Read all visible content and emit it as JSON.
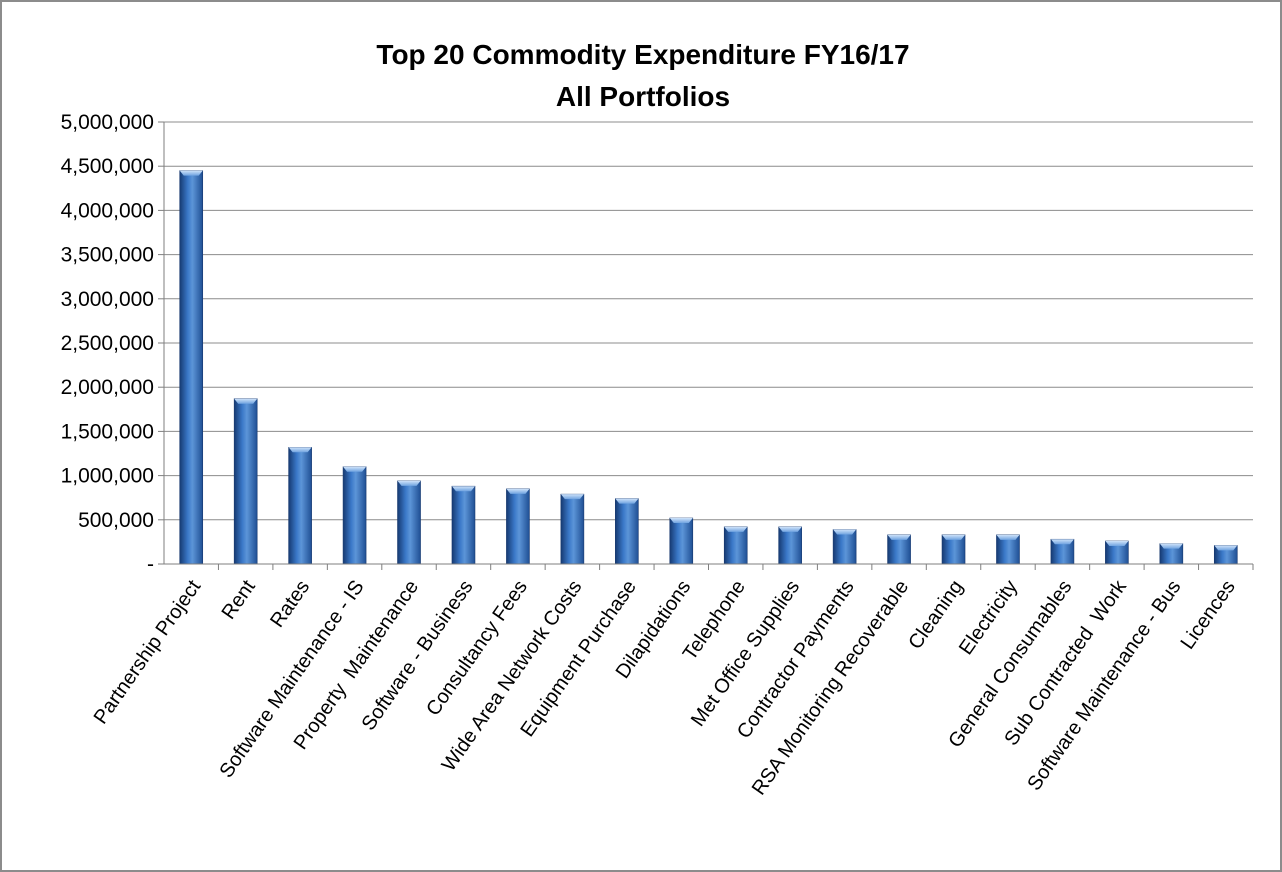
{
  "chart_data": {
    "type": "bar",
    "title": "Top 20 Commodity Expenditure FY16/17",
    "subtitle": "All Portfolios",
    "categories": [
      "Partnership Project",
      "Rent",
      "Rates",
      "Software Maintenance - IS",
      "Property  Maintenance",
      "Software - Business",
      "Consultancy Fees",
      "Wide Area Network Costs",
      "Equipment Purchase",
      "Dilapidations",
      "Telephone",
      "Met Office Supplies",
      "Contractor Payments",
      "RSA Monitoring Recoverable",
      "Cleaning",
      "Electricity",
      "General Consumables",
      "Sub Contracted  Work",
      "Software Maintenance - Bus",
      "Licences"
    ],
    "values": [
      4450000,
      1870000,
      1320000,
      1100000,
      940000,
      880000,
      850000,
      790000,
      740000,
      520000,
      420000,
      420000,
      390000,
      330000,
      330000,
      330000,
      280000,
      260000,
      230000,
      210000
    ],
    "ylim": [
      0,
      5000000
    ],
    "yticks": [
      {
        "value": 0,
        "label": "-"
      },
      {
        "value": 500000,
        "label": "500,000"
      },
      {
        "value": 1000000,
        "label": "1,000,000"
      },
      {
        "value": 1500000,
        "label": "1,500,000"
      },
      {
        "value": 2000000,
        "label": "2,000,000"
      },
      {
        "value": 2500000,
        "label": "2,500,000"
      },
      {
        "value": 3000000,
        "label": "3,000,000"
      },
      {
        "value": 3500000,
        "label": "3,500,000"
      },
      {
        "value": 4000000,
        "label": "4,000,000"
      },
      {
        "value": 4500000,
        "label": "4,500,000"
      },
      {
        "value": 5000000,
        "label": "5,000,000"
      }
    ],
    "xlabel": "",
    "ylabel": "",
    "grid": true,
    "legend": "none",
    "colors": {
      "bar": "#2e64b0",
      "bar_highlight": "#8fb9ea",
      "bar_dark": "#17386e",
      "grid": "#8c8c8c",
      "axis": "#7f7f7f",
      "frame": "#8c8c8c"
    }
  }
}
